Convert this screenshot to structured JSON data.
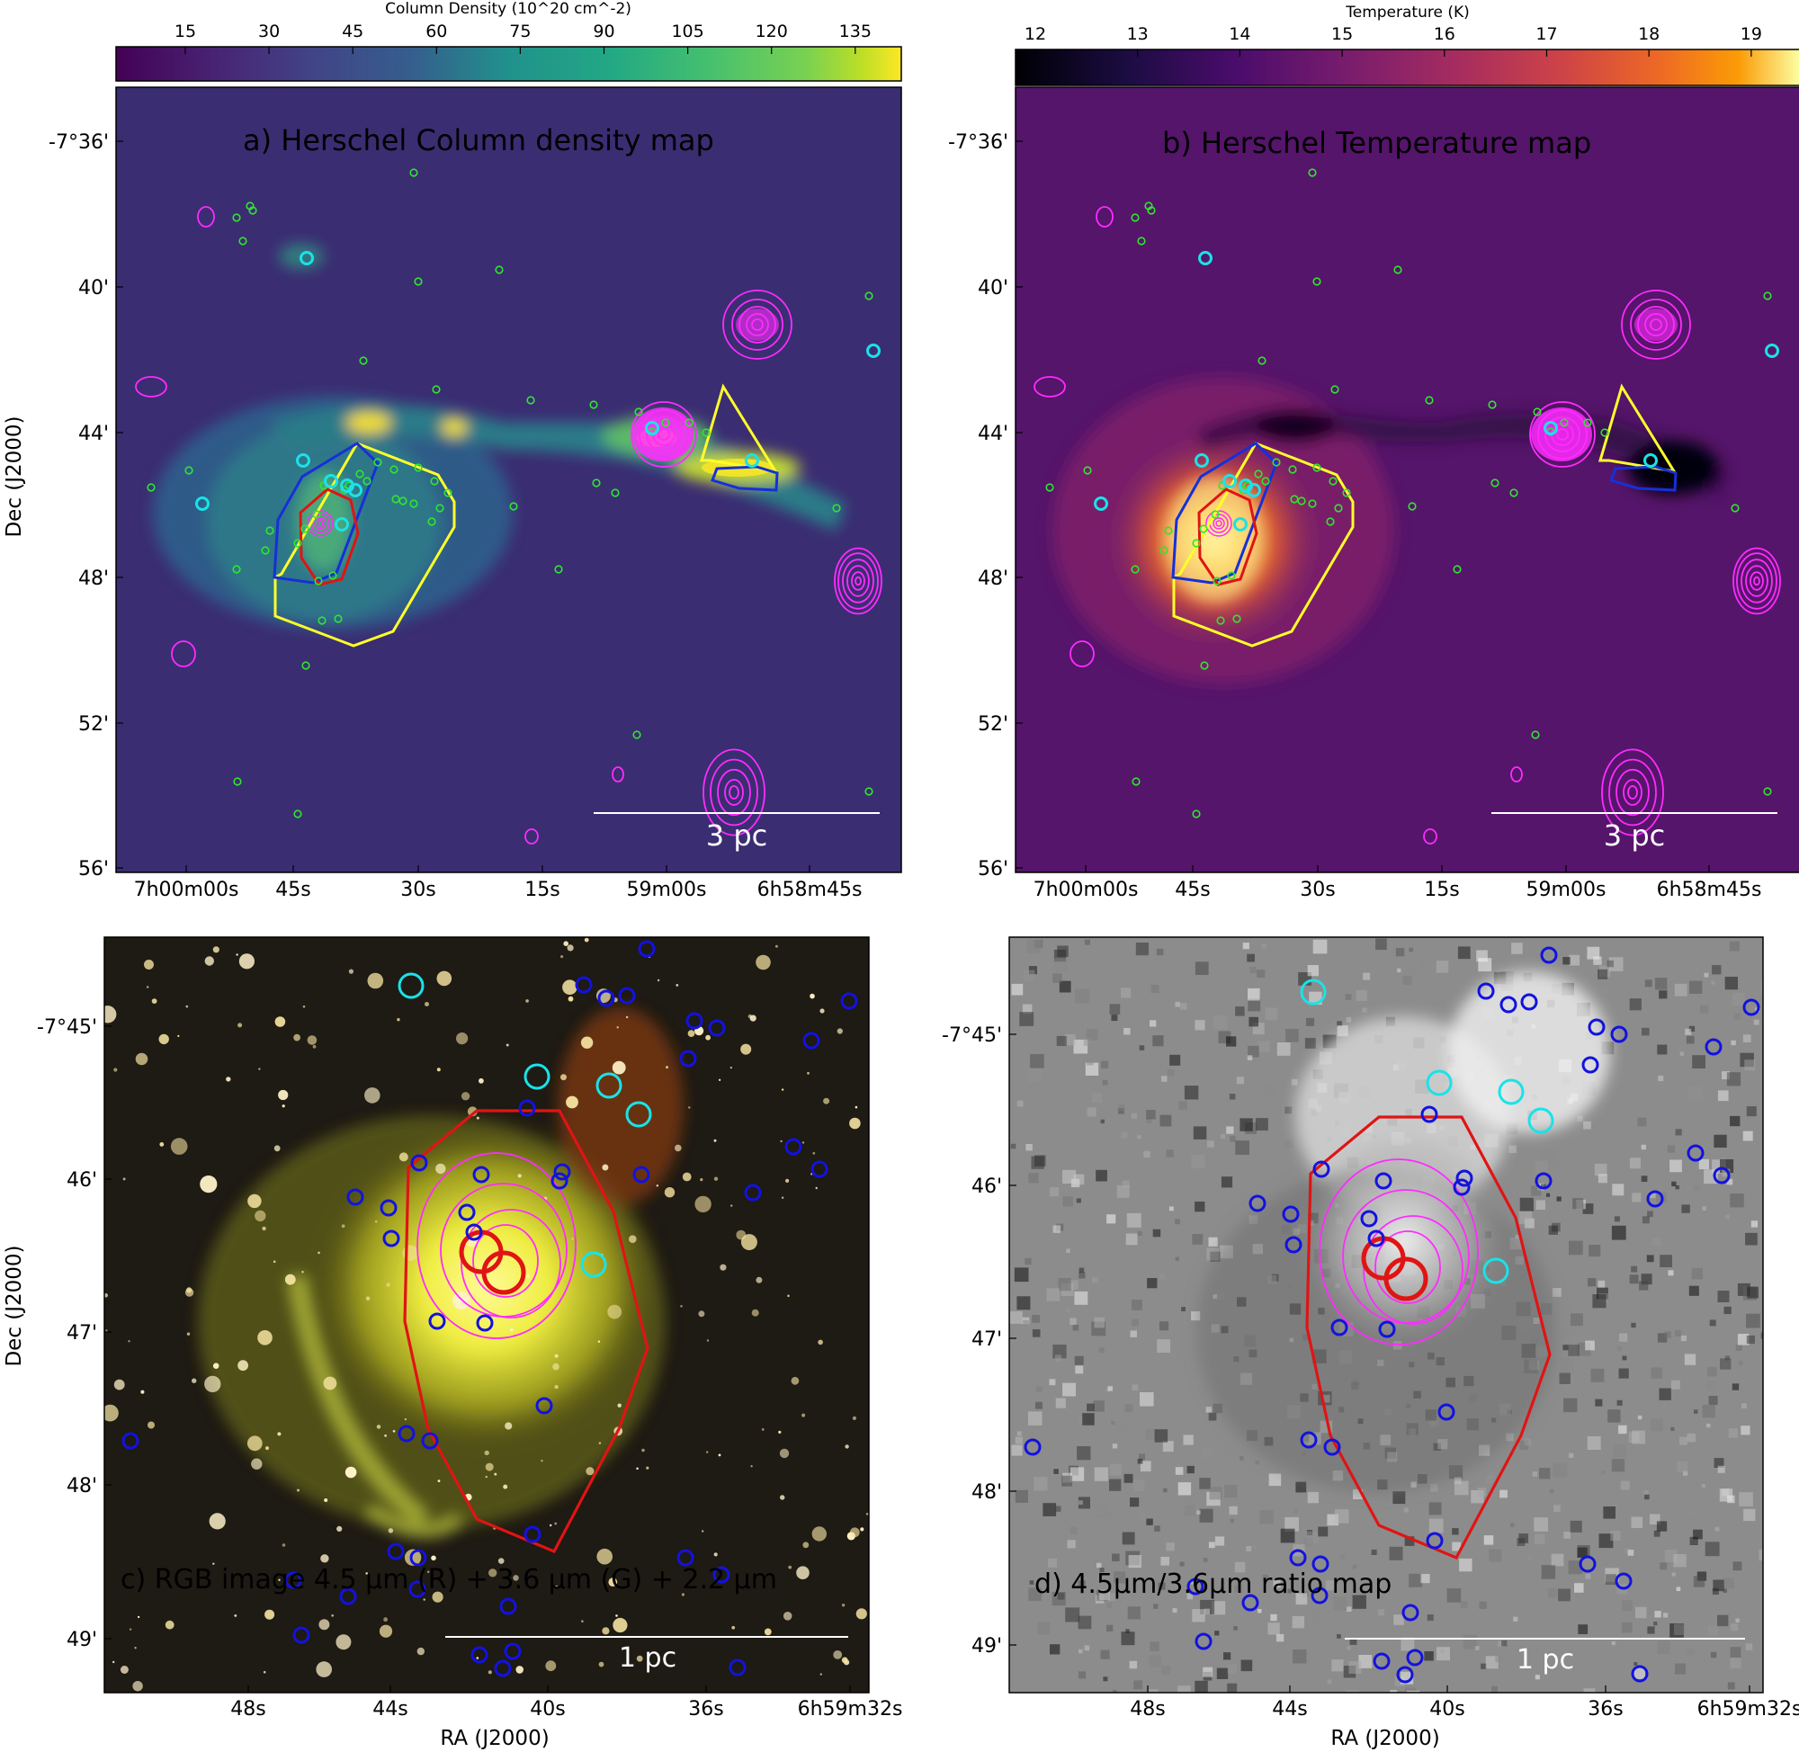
{
  "colors": {
    "cyan_label": "#19e3e8",
    "green_source": "#2ee62e",
    "magenta_contour": "#ff2bff",
    "yellow_polygon": "#ffff2a",
    "blue_polygon": "#1530d8",
    "red_polygon": "#e01414",
    "blue_circle": "#1212e0"
  },
  "panel_a": {
    "label": "a) Herschel Column density map",
    "colorbar_title": "Column Density (10^20 cm^-2)",
    "colorbar_ticks": [
      "15",
      "30",
      "45",
      "60",
      "75",
      "90",
      "105",
      "120",
      "135"
    ],
    "colormap": "viridis",
    "scalebar": "3 pc"
  },
  "panel_b": {
    "label": "b) Herschel Temperature map",
    "colorbar_title": "Temperature (K)",
    "colorbar_ticks": [
      "12",
      "13",
      "14",
      "15",
      "16",
      "17",
      "18",
      "19"
    ],
    "colormap": "inferno",
    "scalebar": "3 pc"
  },
  "panel_c": {
    "label": "c)   RGB image 4.5 μm  (R) + 3.6 μm   (G) + 2.2 μm",
    "scalebar": "1 pc"
  },
  "panel_d": {
    "label": "d)  4.5μm/3.6μm ratio map",
    "scalebar": "1 pc"
  },
  "top_axes": {
    "y_title": "Dec (J2000)",
    "y_ticks": [
      "-7°36'",
      "40'",
      "44'",
      "48'",
      "52'",
      "56'"
    ],
    "x_ticks": [
      "7h00m00s",
      "45s",
      "30s",
      "15s",
      "59m00s",
      "6h58m45s"
    ]
  },
  "bottom_axes": {
    "y_title": "Dec (J2000)",
    "x_title": "RA (J2000)",
    "y_ticks": [
      "-7°45'",
      "46'",
      "47'",
      "48'",
      "49'"
    ],
    "x_ticks": [
      "48s",
      "44s",
      "40s",
      "36s",
      "6h59m32s"
    ]
  }
}
